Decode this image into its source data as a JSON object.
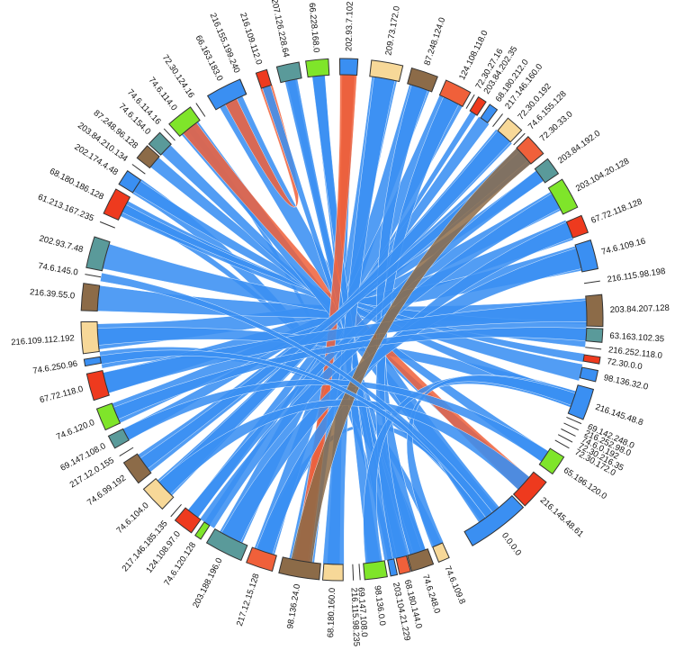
{
  "colors": {
    "blue": "#3a8ff2",
    "orange": "#f0603a",
    "brown": "#8c6b48",
    "green": "#7fe52a",
    "teal": "#5a9a9a",
    "red": "#ee3a1e",
    "cream": "#f7d898"
  },
  "diagram": {
    "type": "chord",
    "nodes": [
      {
        "label": "0.0.0.0",
        "angle": 143,
        "span": 14,
        "color": "blue"
      },
      {
        "label": "74.6.109.8",
        "angle": 157,
        "span": 2.5,
        "color": "cream"
      },
      {
        "label": "74.6.248.0",
        "angle": 162,
        "span": 5,
        "color": "brown"
      },
      {
        "label": "68.180.144.0",
        "angle": 166,
        "span": 2.5,
        "color": "orange"
      },
      {
        "label": "203.104.21.229",
        "angle": 168.5,
        "span": 1.5,
        "color": "blue"
      },
      {
        "label": "98.136.0.0",
        "angle": 172.5,
        "span": 5,
        "color": "green"
      },
      {
        "label": "69.147.108.0",
        "angle": 176,
        "span": 1,
        "color": "none"
      },
      {
        "label": "216.115.98.235",
        "angle": 177.5,
        "span": 1,
        "color": "none"
      },
      {
        "label": "68.180.160.0",
        "angle": 182,
        "span": 4.5,
        "color": "cream"
      },
      {
        "label": "98.136.24.0",
        "angle": 189.5,
        "span": 9,
        "color": "brown"
      },
      {
        "label": "217.12.15.128",
        "angle": 198.5,
        "span": 6,
        "color": "orange"
      },
      {
        "label": "203.188.196.0",
        "angle": 207,
        "span": 8.5,
        "color": "teal"
      },
      {
        "label": "74.6.120.128",
        "angle": 213.5,
        "span": 1.5,
        "color": "green"
      },
      {
        "label": "124.108.97.0",
        "angle": 217.5,
        "span": 4.5,
        "color": "red"
      },
      {
        "label": "217.146.185.135",
        "angle": 221,
        "span": 1,
        "color": "none"
      },
      {
        "label": "74.6.104.0",
        "angle": 226.5,
        "span": 6,
        "color": "cream"
      },
      {
        "label": "74.6.99.192",
        "angle": 234,
        "span": 5.5,
        "color": "brown"
      },
      {
        "label": "217.12.0.155",
        "angle": 238.5,
        "span": 1,
        "color": "none"
      },
      {
        "label": "69.147.108.0",
        "angle": 242,
        "span": 3,
        "color": "teal"
      },
      {
        "label": "74.6.120.0",
        "angle": 247.5,
        "span": 5,
        "color": "green"
      },
      {
        "label": "67.72.118.0",
        "angle": 255,
        "span": 6,
        "color": "red"
      },
      {
        "label": "74.6.250.96",
        "angle": 260.5,
        "span": 1.5,
        "color": "blue"
      },
      {
        "label": "216.109.112.192",
        "angle": 266,
        "span": 7,
        "color": "cream"
      },
      {
        "label": "216.39.55.0",
        "angle": 275,
        "span": 6,
        "color": "brown"
      },
      {
        "label": "74.6.145.0",
        "angle": 280,
        "span": 1,
        "color": "none"
      },
      {
        "label": "202.93.7.48",
        "angle": 285,
        "span": 7,
        "color": "teal"
      },
      {
        "label": "61.213.167.235",
        "angle": 292,
        "span": 1,
        "color": "none"
      },
      {
        "label": "68.180.186.128",
        "angle": 297,
        "span": 6,
        "color": "red"
      },
      {
        "label": "202.174.4.48",
        "angle": 303,
        "span": 3.5,
        "color": "blue"
      },
      {
        "label": "203.84.210.134",
        "angle": 306.5,
        "span": 1,
        "color": "none"
      },
      {
        "label": "87.248.96.128",
        "angle": 310,
        "span": 3.5,
        "color": "brown"
      },
      {
        "label": "74.6.154.0",
        "angle": 314,
        "span": 3.5,
        "color": "teal"
      },
      {
        "label": "74.6.114.16",
        "angle": 317,
        "span": 1,
        "color": "none"
      },
      {
        "label": "74.6.114.0",
        "angle": 321.5,
        "span": 6,
        "color": "green"
      },
      {
        "label": "72.30.124.16",
        "angle": 326,
        "span": 1,
        "color": "none"
      },
      {
        "label": "66.163.183.0",
        "angle": 333,
        "span": 8,
        "color": "blue"
      },
      {
        "label": "216.155.199.240",
        "angle": 337,
        "span": 1,
        "color": "none"
      },
      {
        "label": "216.109.112.0",
        "angle": 342,
        "span": 2.5,
        "color": "red"
      },
      {
        "label": "207.126.228.64",
        "angle": 348,
        "span": 5,
        "color": "teal"
      },
      {
        "label": "66.228.168.0",
        "angle": 354.5,
        "span": 5,
        "color": "green"
      },
      {
        "label": "202.93.7.102",
        "angle": 1.5,
        "span": 4,
        "color": "blue"
      },
      {
        "label": "209.73.172.0",
        "angle": 10,
        "span": 7,
        "color": "cream"
      },
      {
        "label": "87.248.124.0",
        "angle": 18.5,
        "span": 6,
        "color": "brown"
      },
      {
        "label": "124.108.118.0",
        "angle": 26.5,
        "span": 6,
        "color": "orange"
      },
      {
        "label": "72.30.27.16",
        "angle": 30.5,
        "span": 1,
        "color": "none"
      },
      {
        "label": "203.84.202.35",
        "angle": 32.5,
        "span": 2,
        "color": "red"
      },
      {
        "label": "68.180.212.0",
        "angle": 35.5,
        "span": 2,
        "color": "blue"
      },
      {
        "label": "217.146.160.0",
        "angle": 38,
        "span": 1,
        "color": "none"
      },
      {
        "label": "72.30.0.192",
        "angle": 41.5,
        "span": 4,
        "color": "cream"
      },
      {
        "label": "74.6.155.128",
        "angle": 44.5,
        "span": 1,
        "color": "none"
      },
      {
        "label": "72.30.33.0",
        "angle": 48,
        "span": 5,
        "color": "orange"
      },
      {
        "label": "203.84.192.0",
        "angle": 54,
        "span": 4,
        "color": "teal"
      },
      {
        "label": "203.104.20.128",
        "angle": 61,
        "span": 7,
        "color": "green"
      },
      {
        "label": "67.72.118.128",
        "angle": 68.5,
        "span": 4,
        "color": "red"
      },
      {
        "label": "74.6.109.16",
        "angle": 75.5,
        "span": 6.5,
        "color": "blue"
      },
      {
        "label": "216.115.98.198",
        "angle": 81.5,
        "span": 1,
        "color": "none"
      },
      {
        "label": "203.84.207.128",
        "angle": 88,
        "span": 7,
        "color": "brown"
      },
      {
        "label": "63.163.102.35",
        "angle": 93.5,
        "span": 3,
        "color": "teal"
      },
      {
        "label": "216.252.118.0",
        "angle": 96.5,
        "span": 1,
        "color": "none"
      },
      {
        "label": "72.30.0.0",
        "angle": 99,
        "span": 1.5,
        "color": "red"
      },
      {
        "label": "98.136.32.0",
        "angle": 102.5,
        "span": 2.5,
        "color": "blue"
      },
      {
        "label": "216.145.48.8",
        "angle": 109,
        "span": 7,
        "color": "blue"
      },
      {
        "label": "69.142.248.0",
        "angle": 113.5,
        "span": 1,
        "color": "none"
      },
      {
        "label": "216.252.98.0",
        "angle": 115,
        "span": 1,
        "color": "none"
      },
      {
        "label": "74.6.0.192",
        "angle": 116.5,
        "span": 1,
        "color": "none"
      },
      {
        "label": "72.30.216.35",
        "angle": 118,
        "span": 1,
        "color": "none"
      },
      {
        "label": "72.30.172.0",
        "angle": 119.5,
        "span": 1,
        "color": "none"
      },
      {
        "label": "65.196.120.0",
        "angle": 124,
        "span": 4.5,
        "color": "green"
      },
      {
        "label": "216.145.48.61",
        "angle": 132,
        "span": 7,
        "color": "red"
      }
    ],
    "links": [
      {
        "from": 0,
        "to": 21,
        "color": "blue",
        "w": 4
      },
      {
        "from": 0,
        "to": 10,
        "color": "blue",
        "w": 3
      },
      {
        "from": 1,
        "to": 27,
        "color": "blue",
        "w": 2
      },
      {
        "from": 2,
        "to": 28,
        "color": "blue",
        "w": 4
      },
      {
        "from": 3,
        "to": 38,
        "color": "blue",
        "w": 2
      },
      {
        "from": 4,
        "to": 33,
        "color": "blue",
        "w": 1.5
      },
      {
        "from": 5,
        "to": 39,
        "color": "blue",
        "w": 3
      },
      {
        "from": 8,
        "to": 40,
        "color": "blue",
        "w": 3
      },
      {
        "from": 9,
        "to": 41,
        "color": "blue",
        "w": 6
      },
      {
        "from": 9,
        "to": 40,
        "color": "orange",
        "w": 3
      },
      {
        "from": 10,
        "to": 42,
        "color": "blue",
        "w": 5
      },
      {
        "from": 11,
        "to": 43,
        "color": "blue",
        "w": 6
      },
      {
        "from": 12,
        "to": 45,
        "color": "blue",
        "w": 1.5
      },
      {
        "from": 13,
        "to": 46,
        "color": "blue",
        "w": 3
      },
      {
        "from": 15,
        "to": 48,
        "color": "blue",
        "w": 5
      },
      {
        "from": 16,
        "to": 50,
        "color": "blue",
        "w": 5
      },
      {
        "from": 18,
        "to": 51,
        "color": "blue",
        "w": 3
      },
      {
        "from": 19,
        "to": 52,
        "color": "blue",
        "w": 5
      },
      {
        "from": 20,
        "to": 53,
        "color": "blue",
        "w": 5
      },
      {
        "from": 22,
        "to": 54,
        "color": "blue",
        "w": 6
      },
      {
        "from": 22,
        "to": 61,
        "color": "blue",
        "w": 4
      },
      {
        "from": 23,
        "to": 56,
        "color": "blue",
        "w": 6
      },
      {
        "from": 25,
        "to": 57,
        "color": "blue",
        "w": 6
      },
      {
        "from": 27,
        "to": 60,
        "color": "blue",
        "w": 4
      },
      {
        "from": 27,
        "to": 59,
        "color": "blue",
        "w": 2
      },
      {
        "from": 28,
        "to": 61,
        "color": "blue",
        "w": 3
      },
      {
        "from": 30,
        "to": 67,
        "color": "blue",
        "w": 3
      },
      {
        "from": 31,
        "to": 68,
        "color": "blue",
        "w": 3
      },
      {
        "from": 33,
        "to": 0,
        "color": "blue",
        "w": 5
      },
      {
        "from": 33,
        "to": 68,
        "color": "orange",
        "w": 4
      },
      {
        "from": 35,
        "to": 0,
        "color": "blue",
        "w": 6
      },
      {
        "from": 35,
        "to": 37,
        "color": "orange",
        "w": 3
      },
      {
        "from": 37,
        "to": 2,
        "color": "blue",
        "w": 2
      },
      {
        "from": 38,
        "to": 3,
        "color": "blue",
        "w": 3
      },
      {
        "from": 39,
        "to": 4,
        "color": "blue",
        "w": 3
      },
      {
        "from": 40,
        "to": 9,
        "color": "orange",
        "w": 4
      },
      {
        "from": 41,
        "to": 8,
        "color": "blue",
        "w": 5
      },
      {
        "from": 42,
        "to": 2,
        "color": "blue",
        "w": 4
      },
      {
        "from": 43,
        "to": 3,
        "color": "blue",
        "w": 4
      },
      {
        "from": 48,
        "to": 15,
        "color": "blue",
        "w": 4
      },
      {
        "from": 50,
        "to": 16,
        "color": "blue",
        "w": 3
      },
      {
        "from": 51,
        "to": 13,
        "color": "blue",
        "w": 3
      },
      {
        "from": 52,
        "to": 12,
        "color": "blue",
        "w": 4
      },
      {
        "from": 53,
        "to": 10,
        "color": "blue",
        "w": 4
      },
      {
        "from": 54,
        "to": 11,
        "color": "blue",
        "w": 5
      },
      {
        "from": 56,
        "to": 20,
        "color": "blue",
        "w": 5
      },
      {
        "from": 57,
        "to": 19,
        "color": "blue",
        "w": 3
      },
      {
        "from": 61,
        "to": 5,
        "color": "blue",
        "w": 4
      },
      {
        "from": 61,
        "to": 1,
        "color": "blue",
        "w": 3
      },
      {
        "from": 67,
        "to": 18,
        "color": "blue",
        "w": 3
      },
      {
        "from": 68,
        "to": 15,
        "color": "blue",
        "w": 4
      },
      {
        "from": 50,
        "to": 9,
        "color": "brown",
        "w": 5
      },
      {
        "from": 21,
        "to": 0,
        "color": "blue",
        "w": 2
      },
      {
        "from": 24,
        "to": 0,
        "color": "blue",
        "w": 2
      }
    ]
  }
}
